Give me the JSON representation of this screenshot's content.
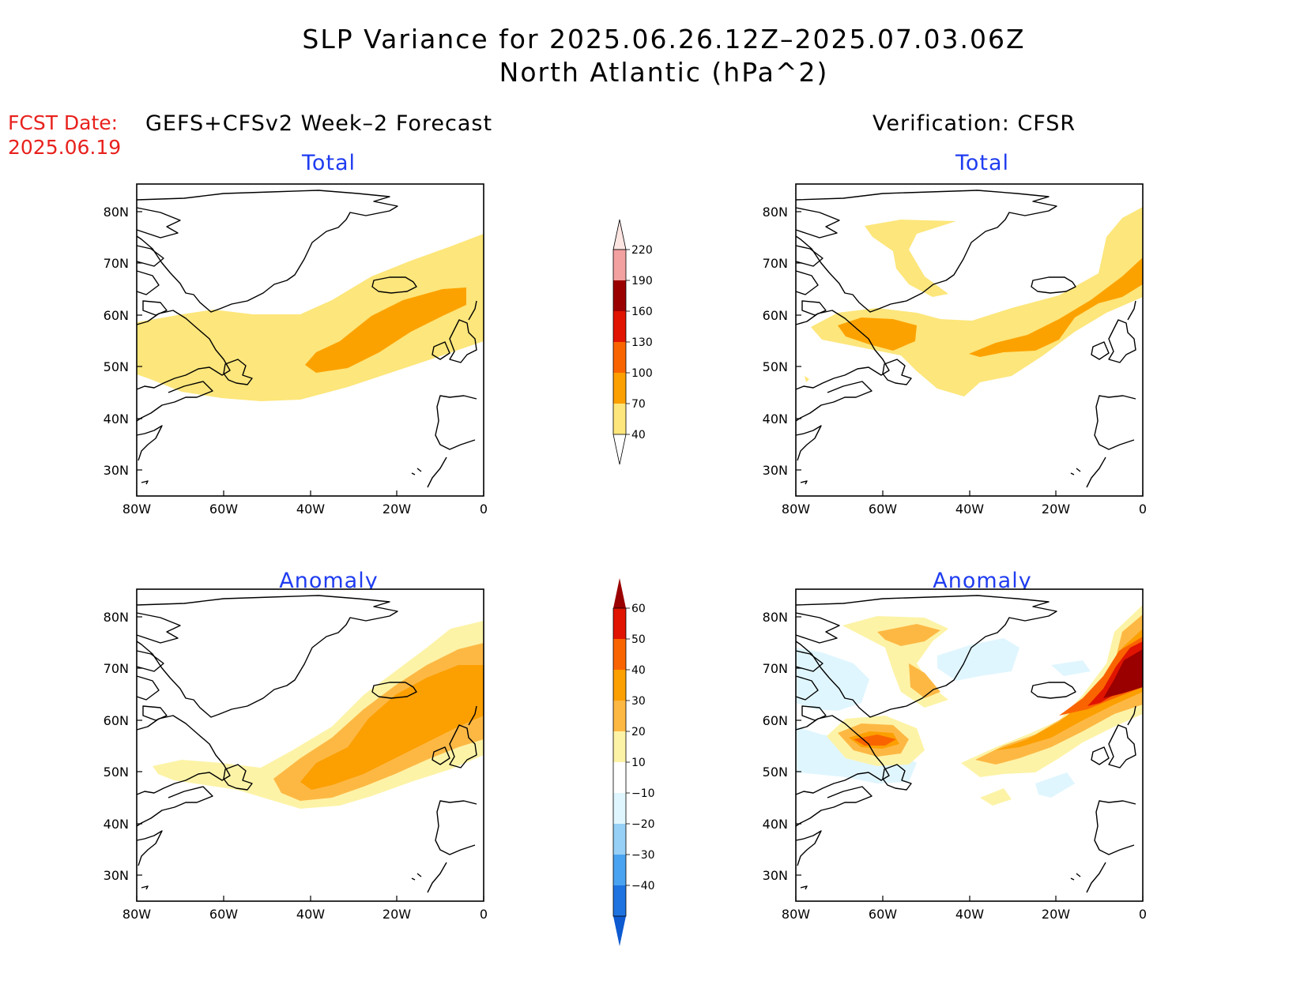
{
  "title": {
    "line1": "SLP Variance for 2025.06.26.12Z–2025.07.03.06Z",
    "line2": "North Atlantic (hPa^2)"
  },
  "fcst": {
    "line1": "FCST Date:",
    "line2": "2025.06.19"
  },
  "left_header": "GEFS+CFSv2 Week–2 Forecast",
  "right_header": "Verification: CFSR",
  "panels": {
    "total": "Total",
    "anomaly": "Anomaly"
  },
  "axes": {
    "lon_labels": [
      "80W",
      "60W",
      "40W",
      "20W",
      "0"
    ],
    "lat_labels": [
      "80N",
      "70N",
      "60N",
      "50N",
      "40N",
      "30N"
    ]
  },
  "colorbar_total": {
    "levels": [
      "220",
      "190",
      "160",
      "130",
      "100",
      "70",
      "40"
    ],
    "colors": [
      "#fde5e2",
      "#f2a0a0",
      "#9b0000",
      "#e01400",
      "#fa6400",
      "#fc9f00",
      "#fde67b"
    ]
  },
  "colorbar_anomaly": {
    "levels": [
      "60",
      "50",
      "40",
      "30",
      "20",
      "10",
      "−10",
      "−20",
      "−30",
      "−40"
    ],
    "colors": [
      "#9b0000",
      "#e01400",
      "#fa6400",
      "#fc9f00",
      "#fdb844",
      "#fdf3a7",
      "#ffffff",
      "#e0f6fe",
      "#96d0f6",
      "#4aa3f0",
      "#1f73e0",
      "#0e5ad0"
    ]
  },
  "colors": {
    "title_red": "#e8211d",
    "subtitle_blue": "#1f3cf0",
    "shade_40": "#fde67b",
    "shade_70": "#fca200"
  }
}
